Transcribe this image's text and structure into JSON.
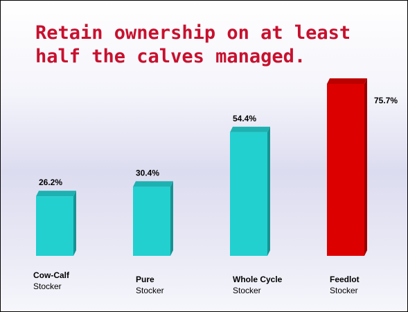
{
  "chart_data": {
    "type": "bar3d",
    "title": "Retain ownership on at least half the calves managed.",
    "categories": [
      "Cow-Calf",
      "Pure",
      "Whole Cycle",
      "Feedlot"
    ],
    "category_subtitles": [
      "Stocker",
      "Stocker",
      "Stocker",
      "Stocker"
    ],
    "values": [
      26.2,
      30.4,
      54.4,
      75.7
    ],
    "value_labels": [
      "26.2%",
      "30.4%",
      "54.4%",
      "75.7%"
    ],
    "colors": [
      "#22d0d0",
      "#22d0d0",
      "#22d0d0",
      "#dd0000"
    ]
  }
}
